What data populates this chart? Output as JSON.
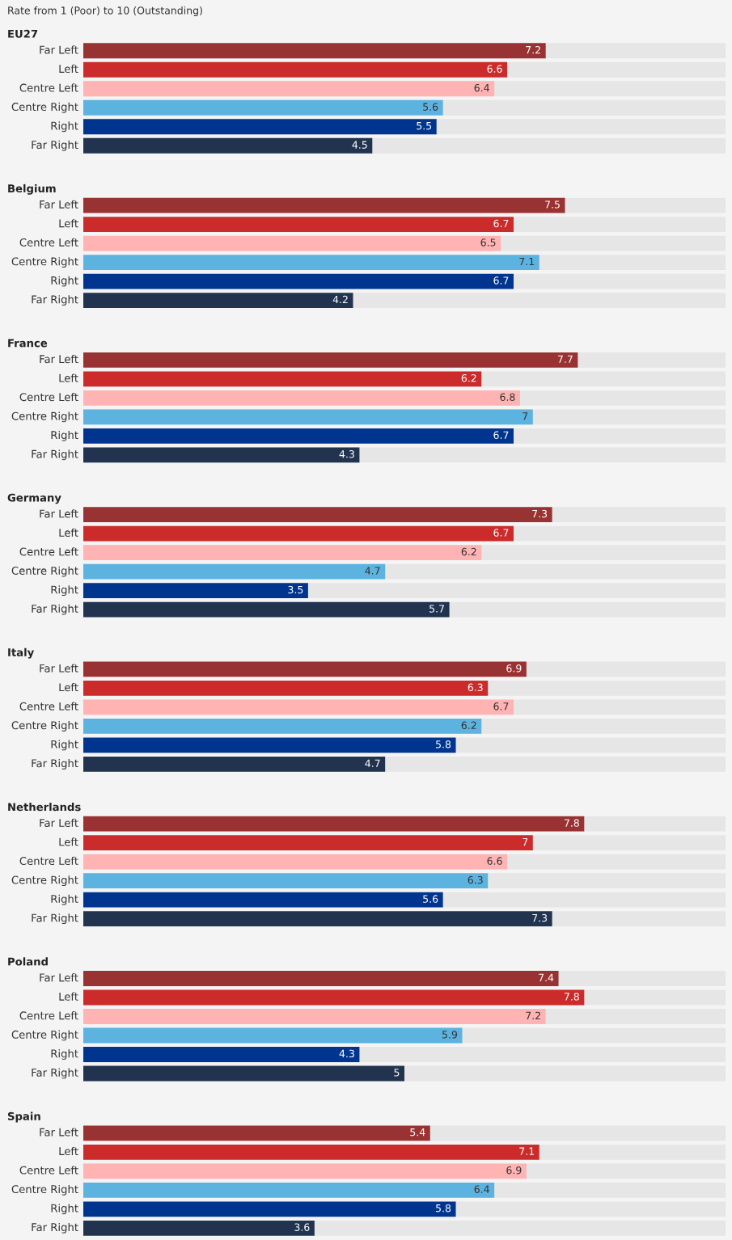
{
  "chart_data": {
    "type": "bar",
    "orientation": "horizontal",
    "title": "Rate from 1 (Poor) to 10 (Outstanding)",
    "categories": [
      "EU27",
      "Belgium",
      "France",
      "Germany",
      "Italy",
      "Netherlands",
      "Poland",
      "Spain"
    ],
    "series": [
      {
        "name": "Far Left",
        "color": "#993333",
        "values": [
          7.2,
          7.5,
          7.7,
          7.3,
          6.9,
          7.8,
          7.4,
          5.4
        ]
      },
      {
        "name": "Left",
        "color": "#cc2b2b",
        "values": [
          6.6,
          6.7,
          6.2,
          6.7,
          6.3,
          7,
          7.8,
          7.1
        ]
      },
      {
        "name": "Centre Left",
        "color": "#ffb3b3",
        "values": [
          6.4,
          6.5,
          6.8,
          6.2,
          6.7,
          6.6,
          7.2,
          6.9
        ]
      },
      {
        "name": "Centre Right",
        "color": "#5db3e0",
        "values": [
          5.6,
          7.1,
          7,
          4.7,
          6.2,
          6.3,
          5.9,
          6.4
        ]
      },
      {
        "name": "Right",
        "color": "#00358f",
        "values": [
          5.5,
          6.7,
          6.7,
          3.5,
          5.8,
          5.6,
          4.3,
          5.8
        ]
      },
      {
        "name": "Far Right",
        "color": "#223350",
        "values": [
          4.5,
          4.2,
          4.3,
          5.7,
          4.7,
          7.3,
          5,
          3.6
        ]
      }
    ],
    "xlim": [
      0,
      10
    ],
    "data_labels": true,
    "tick_labels": "y"
  }
}
